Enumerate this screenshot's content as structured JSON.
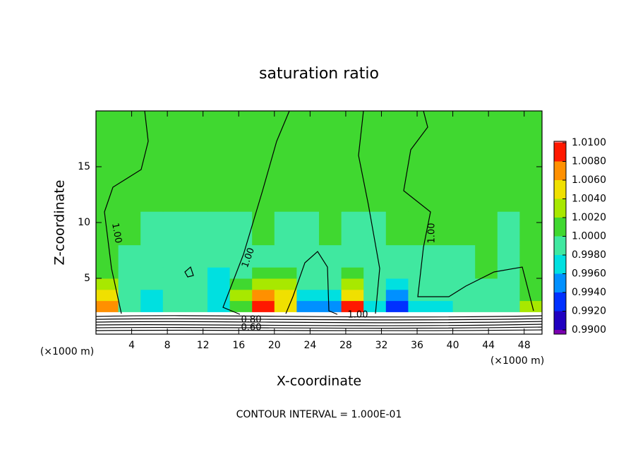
{
  "chart_data": {
    "type": "contour",
    "title": "saturation ratio",
    "x_label": "X-coordinate",
    "y_label": "Z-coordinate",
    "x_unit_left": "(×1000 m)",
    "x_unit_right": "(×1000 m)",
    "footnote": "CONTOUR INTERVAL = 1.000E-01",
    "xlim": [
      0,
      50
    ],
    "ylim": [
      0,
      20
    ],
    "xticks": [
      4,
      8,
      12,
      16,
      20,
      24,
      28,
      32,
      36,
      40,
      44,
      48
    ],
    "yticks": [
      5,
      10,
      15
    ],
    "x_edges": [
      0,
      2.5,
      5,
      7.5,
      10,
      12.5,
      15,
      17.5,
      20,
      22.5,
      25,
      27.5,
      30,
      32.5,
      35,
      37.5,
      40,
      42.5,
      45,
      47.5,
      50
    ],
    "z_edges": [
      2,
      3,
      4,
      5,
      6,
      8,
      11,
      20
    ],
    "values": [
      [
        1.007,
        0.998,
        0.996,
        0.998,
        0.998,
        0.997,
        1.001,
        1.009,
        1.005,
        0.995,
        0.995,
        1.009,
        0.997,
        0.993,
        0.996,
        0.997,
        0.998,
        0.999,
        0.999,
        1.002
      ],
      [
        1.005,
        0.999,
        0.997,
        0.999,
        0.998,
        0.997,
        1.002,
        1.007,
        1.004,
        0.996,
        0.997,
        1.005,
        0.998,
        0.995,
        0.998,
        0.998,
        0.999,
        0.999,
        0.999,
        1.001
      ],
      [
        1.003,
        0.999,
        0.998,
        0.999,
        0.998,
        0.997,
        1.001,
        1.003,
        1.002,
        0.998,
        0.999,
        1.002,
        0.999,
        0.997,
        0.999,
        0.998,
        0.999,
        0.999,
        0.999,
        1.001
      ],
      [
        1.001,
        0.999,
        0.998,
        0.999,
        0.998,
        0.997,
        0.999,
        1.001,
        1.0,
        0.999,
        0.999,
        1.001,
        0.999,
        0.998,
        0.999,
        0.999,
        0.999,
        1.0,
        0.999,
        1.001
      ],
      [
        1.001,
        0.999,
        0.999,
        0.999,
        0.999,
        0.998,
        0.999,
        0.999,
        0.999,
        0.999,
        0.999,
        0.999,
        0.999,
        0.999,
        0.999,
        0.999,
        0.999,
        1.0,
        0.999,
        1.001
      ],
      [
        1.001,
        1.0,
        0.999,
        0.999,
        0.999,
        0.999,
        0.999,
        1.0,
        0.999,
        0.999,
        1.0,
        0.999,
        0.999,
        1.0,
        1.001,
        1.0,
        1.0,
        1.001,
        0.999,
        1.001
      ],
      [
        1.001,
        1.001,
        1.001,
        1.001,
        1.001,
        1.001,
        1.001,
        1.001,
        1.001,
        1.001,
        1.001,
        1.001,
        1.001,
        1.001,
        1.001,
        1.001,
        1.001,
        1.001,
        1.001,
        1.001
      ]
    ],
    "levels": [
      0.99,
      0.992,
      0.994,
      0.996,
      0.998,
      1.0,
      1.002,
      1.004,
      1.006,
      1.008,
      1.01
    ],
    "colors": [
      "#7a00b0",
      "#2000c0",
      "#0030ff",
      "#0090ff",
      "#00e0e0",
      "#40e8a0",
      "#40d830",
      "#a8e800",
      "#f0e000",
      "#ff9000",
      "#ff1800",
      "#ff8080"
    ],
    "colorbar_ticks": [
      {
        "value": 1.01,
        "label": "1.0100"
      },
      {
        "value": 1.008,
        "label": "1.0080"
      },
      {
        "value": 1.006,
        "label": "1.0060"
      },
      {
        "value": 1.004,
        "label": "1.0040"
      },
      {
        "value": 1.002,
        "label": "1.0020"
      },
      {
        "value": 1.0,
        "label": "1.0000"
      },
      {
        "value": 0.998,
        "label": "0.9980"
      },
      {
        "value": 0.996,
        "label": "0.9960"
      },
      {
        "value": 0.994,
        "label": "0.9940"
      },
      {
        "value": 0.992,
        "label": "0.9920"
      },
      {
        "value": 0.99,
        "label": "0.9900"
      }
    ],
    "contour_labels": [
      "1.00",
      "1.00",
      "1.00",
      "1.00",
      "0.80",
      "0.60"
    ]
  }
}
